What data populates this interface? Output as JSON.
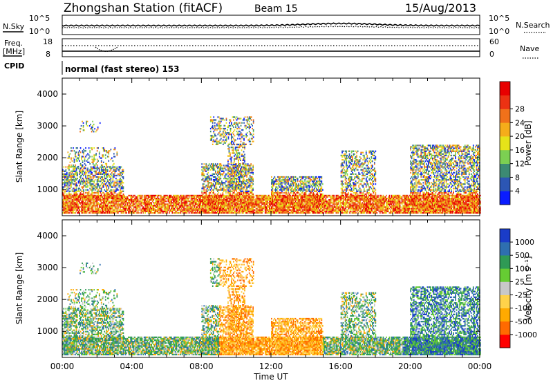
{
  "header": {
    "station": "Zhongshan Station (fitACF)",
    "beam": "Beam 15",
    "date": "15/Aug/2013"
  },
  "panels": {
    "noise": {
      "left_label": "N.Sky",
      "left_ticks": [
        "10^5",
        "10^0"
      ],
      "right_label": "N.Search",
      "right_ticks": [
        "10^5",
        "10^0"
      ]
    },
    "freq": {
      "left_label_1": "Freq.",
      "left_label_2": "[MHz]",
      "left_ticks": [
        "18",
        "8"
      ],
      "right_label": "Nave",
      "right_ticks": [
        "60",
        "0"
      ]
    },
    "cpid": {
      "label": "CPID",
      "text": "normal (fast stereo) 153"
    }
  },
  "colors": {
    "power": [
      "#0a1cff",
      "#2c56b4",
      "#3c8a73",
      "#7ccf52",
      "#e6e319",
      "#f5ad1a",
      "#f0711a",
      "#ec3213",
      "#e80000"
    ],
    "velocity": [
      "#ff0000",
      "#ff6a00",
      "#ffaa00",
      "#ffd24a",
      "#c8c8c8",
      "#66cc33",
      "#2f9a55",
      "#2e6fb0",
      "#1a3cc8"
    ]
  },
  "chart_data": [
    {
      "type": "heatmap",
      "name": "power",
      "ylabel": "Slant Range [km]",
      "yticks": [
        1000,
        2000,
        3000,
        4000
      ],
      "ylim": [
        180,
        4500
      ],
      "xlim_hours": [
        0,
        24
      ],
      "colorbar": {
        "label": "Power [dB]",
        "ticks": [
          "4",
          "8",
          "12",
          "16",
          "20",
          "24",
          "28"
        ],
        "range": [
          0,
          30
        ]
      }
    },
    {
      "type": "heatmap",
      "name": "velocity",
      "ylabel": "Slant Range [km]",
      "yticks": [
        1000,
        2000,
        3000,
        4000
      ],
      "ylim": [
        180,
        4500
      ],
      "xlim_hours": [
        0,
        24
      ],
      "colorbar": {
        "label": "Velocity [m s⁻¹]",
        "ticks": [
          "1000",
          "500",
          "100",
          "25",
          "-25",
          "-100",
          "-500",
          "-1000"
        ]
      }
    }
  ],
  "x_axis": {
    "ticks": [
      "00:00",
      "04:00",
      "08:00",
      "12:00",
      "16:00",
      "20:00",
      "00:00"
    ],
    "label": "Time UT"
  }
}
